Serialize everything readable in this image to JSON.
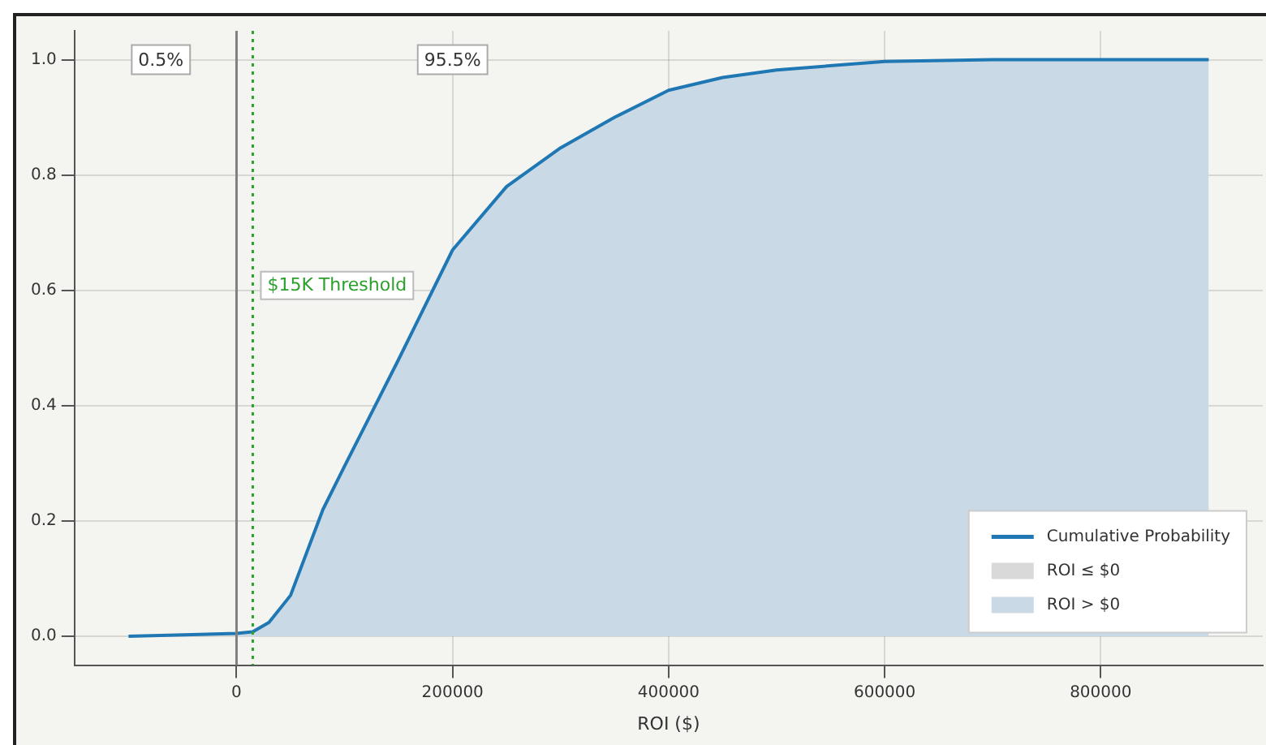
{
  "chart_data": {
    "type": "line",
    "xlabel": "ROI ($)",
    "xlim": [
      -150000,
      950000
    ],
    "xticks": [
      0,
      200000,
      400000,
      600000,
      800000
    ],
    "ylim": [
      -0.05,
      1.05
    ],
    "yticks": [
      {
        "value": 0,
        "label": "0.0"
      },
      {
        "value": 0.2,
        "label": "0.2"
      },
      {
        "value": 0.4,
        "label": "0.4"
      },
      {
        "value": 0.6,
        "label": "0.6"
      },
      {
        "value": 0.8,
        "label": "0.8"
      },
      {
        "value": 1,
        "label": "1.0"
      }
    ],
    "series": [
      {
        "name": "ROI ≤ $0",
        "type": "area",
        "color": "#d9d9d9",
        "x": [
          -100000,
          -50000,
          0
        ],
        "values": [
          0,
          0.001,
          0.005
        ]
      },
      {
        "name": "ROI > $0",
        "type": "area",
        "color": "#c9dae6",
        "x": [
          0,
          15000,
          30000,
          50000,
          80000,
          100000,
          150000,
          200000,
          250000,
          300000,
          350000,
          400000,
          450000,
          500000,
          600000,
          700000,
          800000,
          900000
        ],
        "values": [
          0.005,
          0.008,
          0.024,
          0.071,
          0.22,
          0.295,
          0.48,
          0.67,
          0.78,
          0.847,
          0.9,
          0.947,
          0.969,
          0.982,
          0.997,
          1,
          1,
          1
        ]
      },
      {
        "name": "Cumulative Probability",
        "type": "line",
        "color": "#1f77b4",
        "x": [
          -100000,
          0,
          15000,
          30000,
          50000,
          80000,
          100000,
          150000,
          200000,
          250000,
          300000,
          350000,
          400000,
          450000,
          500000,
          600000,
          700000,
          800000,
          900000
        ],
        "values": [
          0,
          0.005,
          0.008,
          0.024,
          0.071,
          0.22,
          0.295,
          0.48,
          0.67,
          0.78,
          0.847,
          0.9,
          0.947,
          0.969,
          0.982,
          0.997,
          1,
          1,
          1
        ]
      }
    ],
    "ref_lines": [
      {
        "axis": "x",
        "value": 0,
        "color": "#808080",
        "line_style": "solid"
      },
      {
        "axis": "x",
        "value": 15000,
        "label": "$15K Threshold",
        "color": "#2ca02c",
        "line_style": "dotted"
      }
    ],
    "annotations": [
      {
        "text": "0.5%",
        "x": -70000,
        "y": 1
      },
      {
        "text": "95.5%",
        "x": 200000,
        "y": 1
      }
    ],
    "grid": true,
    "legend": "bottom right",
    "marker": "none",
    "line_style": "solid"
  }
}
